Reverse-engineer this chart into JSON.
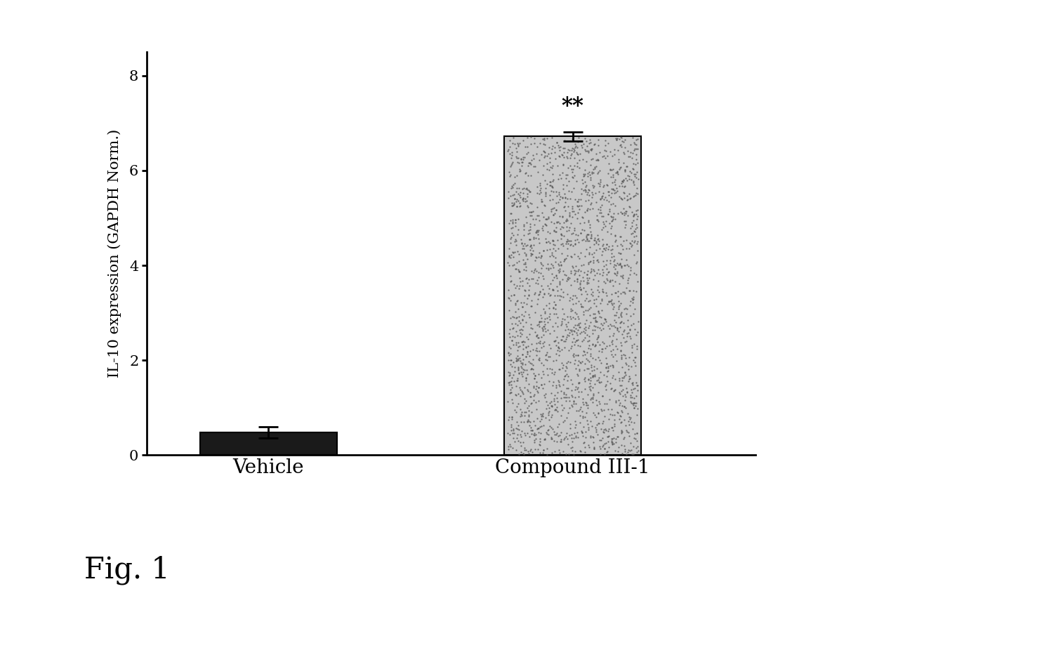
{
  "categories": [
    "Vehicle",
    "Compound III-1"
  ],
  "values": [
    0.48,
    6.72
  ],
  "errors": [
    0.12,
    0.1
  ],
  "bar_colors": [
    "#1a1a1a",
    "#c8c8c8"
  ],
  "bar_edgecolors": [
    "#000000",
    "#000000"
  ],
  "ylabel": "IL-10 expression (GAPDH Norm.)",
  "ylim": [
    0,
    8.5
  ],
  "yticks": [
    0,
    2,
    4,
    6,
    8
  ],
  "significance_label": "**",
  "significance_bar_index": 1,
  "fig_label": "Fig. 1",
  "bar_width": 0.45,
  "background_color": "#ffffff",
  "axis_fontsize": 15,
  "tick_fontsize": 15,
  "label_fontsize": 20,
  "sig_fontsize": 22,
  "fig_label_fontsize": 30,
  "x_positions": [
    0.5,
    1.5
  ],
  "xlim": [
    0.1,
    2.1
  ]
}
